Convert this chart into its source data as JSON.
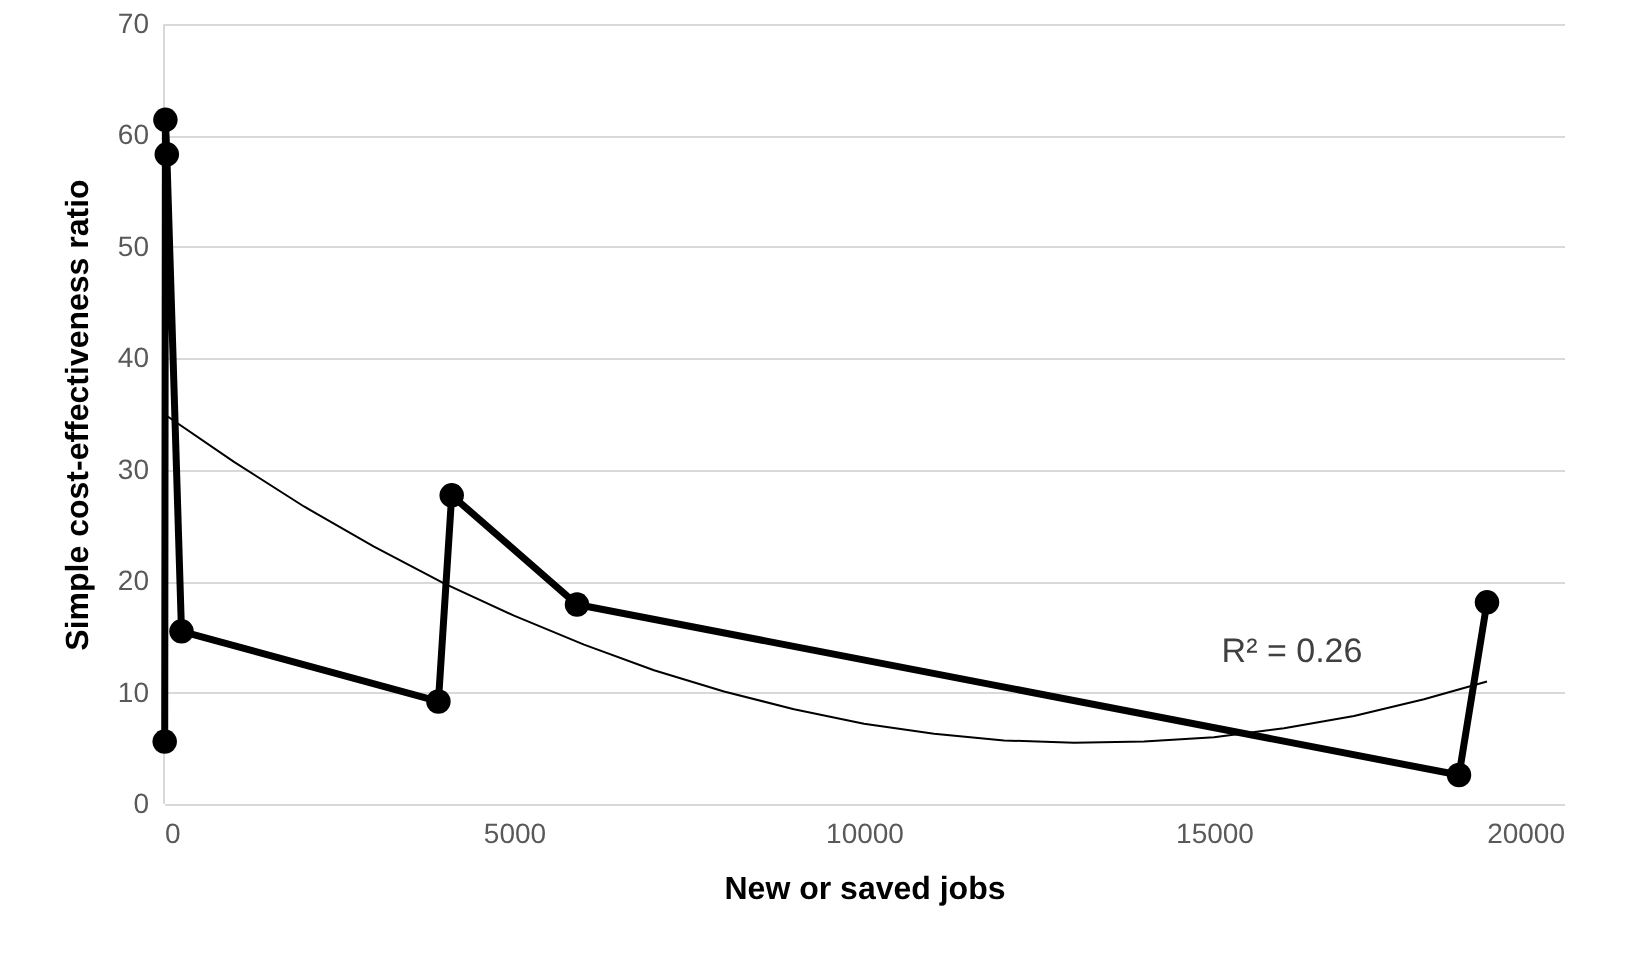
{
  "chart_data": {
    "type": "line",
    "xlabel": "New or saved jobs",
    "ylabel": "Simple cost-effectiveness ratio",
    "xlim": [
      0,
      20000
    ],
    "xticks": [
      0,
      5000,
      10000,
      15000,
      20000
    ],
    "ylim": [
      0,
      70
    ],
    "yticks": [
      0,
      10,
      20,
      30,
      40,
      50,
      60,
      70
    ],
    "grid": "y",
    "marker": "circle",
    "line_style": "solid",
    "series": [
      {
        "color": "#000000",
        "x": [
          10,
          20,
          40,
          250,
          3920,
          4110,
          5900,
          18500,
          18900
        ],
        "values": [
          5.6,
          61.4,
          58.3,
          15.5,
          9.2,
          27.7,
          17.9,
          2.6,
          18.1
        ]
      },
      {
        "color": "#000000",
        "marker": "none",
        "x": [
          0,
          1000,
          2000,
          3000,
          4000,
          5000,
          6000,
          7000,
          8000,
          9000,
          10000,
          11000,
          12000,
          13000,
          14000,
          15000,
          16000,
          17000,
          18000,
          18900
        ],
        "values": [
          35,
          30.7,
          26.7,
          23.1,
          19.8,
          16.9,
          14.3,
          12.0,
          10.1,
          8.5,
          7.2,
          6.3,
          5.7,
          5.5,
          5.6,
          6.0,
          6.8,
          7.9,
          9.4,
          11.0
        ]
      }
    ],
    "annotations": [
      "R² = 0.26"
    ]
  }
}
